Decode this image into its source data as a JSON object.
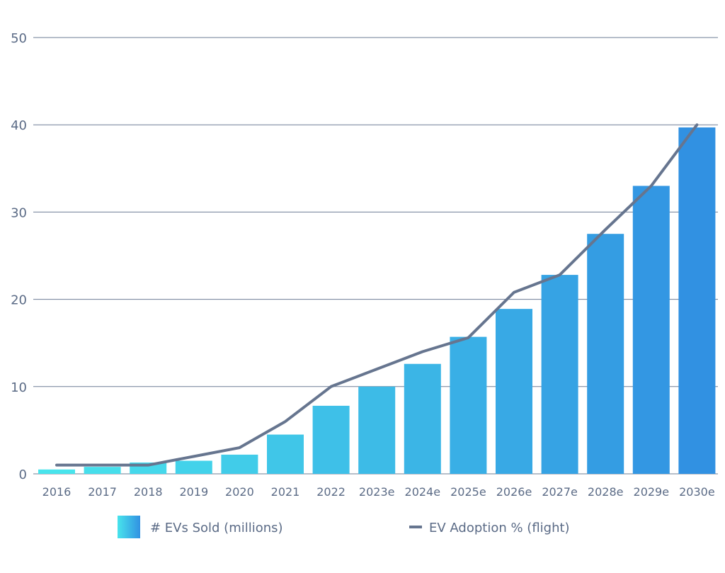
{
  "chart_data": {
    "type": "bar",
    "title": "",
    "xlabel": "",
    "ylabel": "",
    "ylim": [
      0,
      50
    ],
    "yticks": [
      0,
      10,
      20,
      30,
      40,
      50
    ],
    "grid": true,
    "categories": [
      "2016",
      "2017",
      "2018",
      "2019",
      "2020",
      "2021",
      "2022",
      "2023e",
      "2024e",
      "2025e",
      "2026e",
      "2027e",
      "2028e",
      "2029e",
      "2030e"
    ],
    "series": [
      {
        "name": "# EVs Sold (millions)",
        "type": "bar",
        "values": [
          0.5,
          0.8,
          1.3,
          1.5,
          2.2,
          4.5,
          7.8,
          10.0,
          12.6,
          15.7,
          18.9,
          22.8,
          27.5,
          33.0,
          39.7
        ]
      },
      {
        "name": "EV Adoption % (flight)",
        "type": "line",
        "values": [
          1.0,
          1.0,
          1.0,
          2.0,
          3.0,
          6.0,
          10.0,
          12.0,
          14.0,
          15.6,
          20.8,
          22.8,
          28.0,
          33.0,
          40.0
        ]
      }
    ],
    "legend_position": "bottom",
    "colors": {
      "bar_start": "#48e4ec",
      "bar_end": "#3191e2",
      "line": "#66758f",
      "grid": "#6e7d96",
      "text": "#5b6b86"
    }
  }
}
